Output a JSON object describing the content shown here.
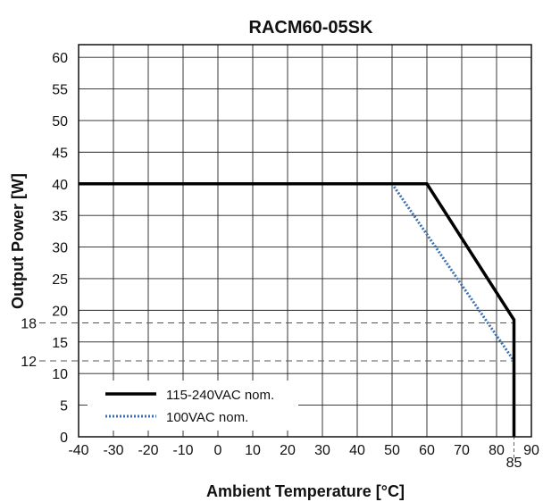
{
  "chart_data": {
    "type": "line",
    "title": "RACM60-05SK",
    "xlabel": "Ambient Temperature [°C]",
    "ylabel": "Output Power [W]",
    "xlim": [
      -40,
      90
    ],
    "ylim": [
      0,
      62
    ],
    "xticks": [
      -40,
      -30,
      -20,
      -10,
      0,
      10,
      20,
      30,
      40,
      50,
      60,
      70,
      80,
      90
    ],
    "yticks": [
      0,
      5,
      10,
      15,
      20,
      25,
      30,
      35,
      40,
      45,
      50,
      55,
      60
    ],
    "grid": true,
    "legend_position": "bottom-left",
    "series": [
      {
        "name": "115-240VAC nom.",
        "color": "#000000",
        "style": "solid",
        "points": [
          [
            -40,
            40
          ],
          [
            60,
            40
          ],
          [
            85,
            18.5
          ],
          [
            85,
            0
          ]
        ]
      },
      {
        "name": "100VAC nom.",
        "color": "#3a6fb0",
        "style": "dotted",
        "points": [
          [
            50,
            40
          ],
          [
            85,
            12
          ],
          [
            85,
            0
          ]
        ]
      }
    ],
    "reference_lines": [
      {
        "axis": "y",
        "value": 18,
        "label": "18"
      },
      {
        "axis": "y",
        "value": 12,
        "label": "12"
      },
      {
        "axis": "x",
        "value": 85,
        "label": "85"
      }
    ]
  }
}
